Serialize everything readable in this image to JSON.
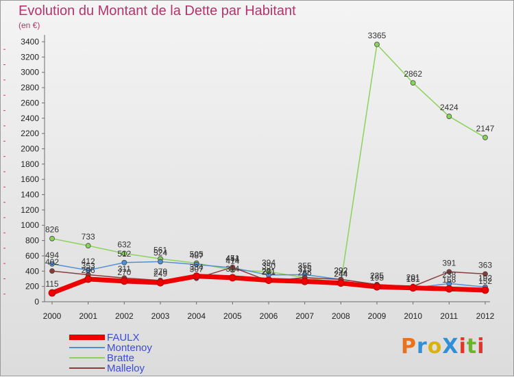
{
  "title": "Evolution du Montant de la Dette par Habitant",
  "unit": "(en €)",
  "logo_text": "ProXiti",
  "logo_colors": [
    "#e8731a",
    "#2f8fd8",
    "#d9b210",
    "#2f8fd8",
    "#e0372c",
    "#6bb52a",
    "#e0372c"
  ],
  "chart_data": {
    "type": "line",
    "x": [
      2000,
      2001,
      2002,
      2003,
      2004,
      2005,
      2006,
      2007,
      2008,
      2009,
      2010,
      2011,
      2012
    ],
    "y_ticks": [
      0,
      200,
      400,
      600,
      800,
      1000,
      1200,
      1400,
      1600,
      1800,
      2000,
      2200,
      2400,
      2600,
      2800,
      3000,
      3200,
      3400
    ],
    "ylim": [
      0,
      3500
    ],
    "grid": false,
    "legend_position": "bottom-left",
    "series": [
      {
        "name": "FAULX",
        "color": "#ee0000",
        "values": [
          115,
          296,
          270,
          249,
          334,
          314,
          281,
          266,
          244,
          195,
          181,
          168,
          152
        ],
        "labels": [
          "115",
          "296",
          "270",
          "249",
          "334",
          "314",
          "281",
          "266",
          "244",
          "195",
          "181",
          "168",
          "152"
        ]
      },
      {
        "name": "Montenoy",
        "color": "#4f8fd6",
        "values": [
          494,
          412,
          512,
          524,
          487,
          444,
          350,
          355,
          292,
          225,
          181,
          238,
          192
        ],
        "labels": [
          "494",
          "412",
          "512",
          "524",
          "487",
          "444",
          "350",
          "355",
          "292",
          "225",
          "181",
          "238",
          "192"
        ]
      },
      {
        "name": "Bratte",
        "color": "#8ad25a",
        "values": [
          826,
          733,
          632,
          561,
          505,
          414,
          394,
          315,
          244,
          3365,
          2862,
          2424,
          2147
        ],
        "labels": [
          "826",
          "733",
          "632",
          "561",
          "505",
          "414",
          "394",
          "315",
          "244",
          "3365",
          "2862",
          "2424",
          "2147"
        ]
      },
      {
        "name": "Malleloy",
        "color": "#8b3a3a",
        "values": [
          402,
          353,
          311,
          279,
          307,
          451,
          271,
          315,
          292,
          225,
          201,
          391,
          363
        ],
        "labels": [
          "402",
          "353",
          "311",
          "279",
          "307",
          "451",
          "271",
          "315",
          "292",
          "225",
          "201",
          "391",
          "363"
        ]
      }
    ]
  }
}
